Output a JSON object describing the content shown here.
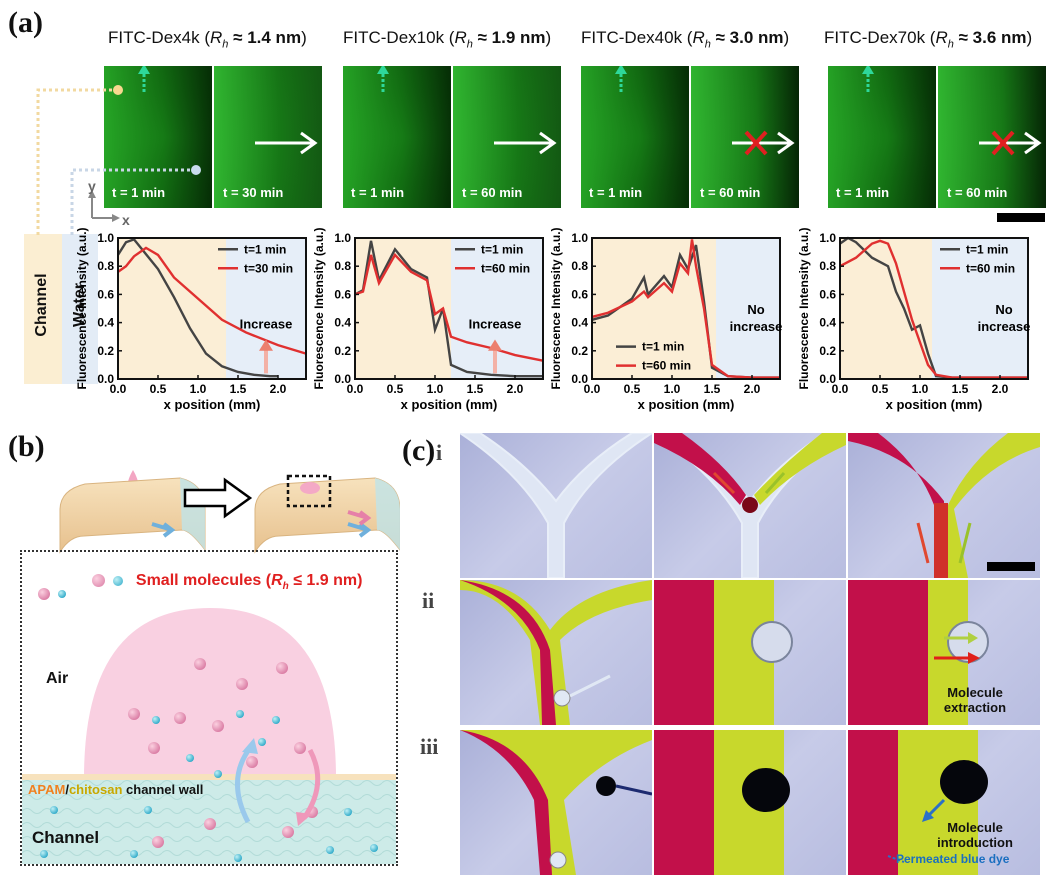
{
  "panels": {
    "a": "(a)",
    "b": "(b)",
    "c": "(c)"
  },
  "dextrans": [
    {
      "name": "FITC-Dex4k",
      "rh_prefix": "R",
      "rh_sub": "h",
      "rh_value": " ≈ 1.4 nm",
      "t1": "t = 1 min",
      "t2": "t = 30 min",
      "blocked": false,
      "chart": {
        "legend1": "t=1 min",
        "legend2": "t=30 min",
        "annotation": "Increase"
      }
    },
    {
      "name": "FITC-Dex10k",
      "rh_prefix": "R",
      "rh_sub": "h",
      "rh_value": " ≈ 1.9 nm",
      "t1": "t = 1 min",
      "t2": "t = 60 min",
      "blocked": false,
      "chart": {
        "legend1": "t=1 min",
        "legend2": "t=60 min",
        "annotation": "Increase"
      }
    },
    {
      "name": "FITC-Dex40k",
      "rh_prefix": "R",
      "rh_sub": "h",
      "rh_value": " ≈ 3.0 nm",
      "t1": "t = 1 min",
      "t2": "t = 60 min",
      "blocked": true,
      "chart": {
        "legend1": "t=1 min",
        "legend2": "t=60 min",
        "annotation": "No increase"
      }
    },
    {
      "name": "FITC-Dex70k",
      "rh_prefix": "R",
      "rh_sub": "h",
      "rh_value": " ≈ 3.6 nm",
      "t1": "t = 1 min",
      "t2": "t = 60 min",
      "blocked": true,
      "chart": {
        "legend1": "t=1 min",
        "legend2": "t=60 min",
        "annotation": "No increase"
      }
    }
  ],
  "axes": {
    "xlabel": "x position (mm)",
    "ylabel": "Fluorescence Intensity (a.u.)",
    "xticks": [
      "0.0",
      "0.5",
      "1.0",
      "1.5",
      "2.0"
    ],
    "yticks": [
      "0.0",
      "0.2",
      "0.4",
      "0.6",
      "0.8",
      "1.0"
    ]
  },
  "axis_indicator": {
    "y": "y",
    "x": "x"
  },
  "side_labels": {
    "channel": "Channel",
    "water": "Water"
  },
  "chart_data": [
    {
      "type": "line",
      "xlim": [
        0,
        2.35
      ],
      "ylim": [
        0,
        1.0
      ],
      "series": [
        {
          "name": "t=1 min",
          "color": "#444444",
          "x": [
            0,
            0.1,
            0.2,
            0.3,
            0.5,
            0.7,
            0.9,
            1.1,
            1.3,
            1.5,
            1.7,
            1.9,
            2.0
          ],
          "y": [
            0.88,
            0.97,
            0.99,
            0.92,
            0.78,
            0.58,
            0.36,
            0.18,
            0.09,
            0.05,
            0.03,
            0.02,
            0.02
          ]
        },
        {
          "name": "t=30 min",
          "color": "#e03030",
          "x": [
            0,
            0.1,
            0.2,
            0.35,
            0.5,
            0.7,
            1.0,
            1.3,
            1.6,
            2.0,
            2.35
          ],
          "y": [
            0.76,
            0.8,
            0.87,
            0.93,
            0.88,
            0.72,
            0.57,
            0.42,
            0.33,
            0.24,
            0.18
          ]
        }
      ]
    },
    {
      "type": "line",
      "xlim": [
        0,
        2.35
      ],
      "ylim": [
        0,
        1.0
      ],
      "series": [
        {
          "name": "t=1 min",
          "color": "#444444",
          "x": [
            0,
            0.1,
            0.2,
            0.3,
            0.5,
            0.7,
            0.9,
            1.0,
            1.1,
            1.2,
            1.4,
            1.7,
            2.0,
            2.35
          ],
          "y": [
            0.6,
            0.63,
            0.98,
            0.7,
            0.92,
            0.78,
            0.72,
            0.35,
            0.5,
            0.1,
            0.05,
            0.03,
            0.02,
            0.02
          ]
        },
        {
          "name": "t=60 min",
          "color": "#e03030",
          "x": [
            0,
            0.1,
            0.2,
            0.3,
            0.5,
            0.7,
            0.9,
            1.0,
            1.1,
            1.2,
            1.4,
            1.7,
            2.0,
            2.35
          ],
          "y": [
            0.6,
            0.62,
            0.88,
            0.68,
            0.88,
            0.76,
            0.7,
            0.46,
            0.5,
            0.3,
            0.26,
            0.22,
            0.17,
            0.13
          ]
        }
      ]
    },
    {
      "type": "line",
      "xlim": [
        0,
        2.35
      ],
      "ylim": [
        0,
        1.0
      ],
      "series": [
        {
          "name": "t=1 min",
          "color": "#444444",
          "x": [
            0,
            0.2,
            0.5,
            0.65,
            0.7,
            0.9,
            1.0,
            1.1,
            1.2,
            1.3,
            1.4,
            1.5,
            1.7,
            2.0,
            2.35
          ],
          "y": [
            0.42,
            0.45,
            0.57,
            0.72,
            0.6,
            0.73,
            0.65,
            0.88,
            0.78,
            0.95,
            0.55,
            0.08,
            0.02,
            0.01,
            0.01
          ]
        },
        {
          "name": "t=60 min",
          "color": "#e03030",
          "x": [
            0,
            0.2,
            0.5,
            0.65,
            0.7,
            0.9,
            1.0,
            1.1,
            1.2,
            1.25,
            1.3,
            1.4,
            1.5,
            1.7,
            2.0,
            2.35
          ],
          "y": [
            0.44,
            0.47,
            0.55,
            0.62,
            0.58,
            0.68,
            0.62,
            0.82,
            0.75,
            0.99,
            0.8,
            0.5,
            0.1,
            0.02,
            0.01,
            0.01
          ]
        }
      ]
    },
    {
      "type": "line",
      "xlim": [
        0,
        2.35
      ],
      "ylim": [
        0,
        1.0
      ],
      "series": [
        {
          "name": "t=1 min",
          "color": "#444444",
          "x": [
            0,
            0.1,
            0.2,
            0.4,
            0.6,
            0.7,
            0.8,
            0.9,
            1.0,
            1.1,
            1.2,
            1.4,
            2.35
          ],
          "y": [
            0.96,
            1.0,
            0.97,
            0.86,
            0.8,
            0.62,
            0.5,
            0.35,
            0.38,
            0.18,
            0.02,
            0.01,
            0.01
          ]
        },
        {
          "name": "t=60 min",
          "color": "#e03030",
          "x": [
            0,
            0.2,
            0.4,
            0.5,
            0.6,
            0.7,
            0.8,
            0.9,
            1.0,
            1.1,
            1.2,
            1.4,
            2.35
          ],
          "y": [
            0.8,
            0.86,
            0.96,
            0.98,
            0.96,
            0.82,
            0.62,
            0.42,
            0.26,
            0.1,
            0.03,
            0.01,
            0.01
          ]
        }
      ]
    }
  ],
  "panel_b": {
    "legend_text": "Small molecules (",
    "legend_rh_prefix": "R",
    "legend_rh_sub": "h",
    "legend_rh_value": " ≤ 1.9 nm)",
    "air": "Air",
    "wall_apam": "APAM",
    "wall_slash": "/",
    "wall_chitosan": "chitosan",
    "wall_rest": " channel wall",
    "channel": "Channel",
    "colors": {
      "legend": "#e02020",
      "apam": "#f08020",
      "chitosan": "#c8a800"
    }
  },
  "panel_c": {
    "rows": [
      "i",
      "ii",
      "iii"
    ],
    "extraction": "Molecule extraction",
    "introduction": "Molecule introduction",
    "permeated": "Permeated blue dye",
    "permeated_color": "#1a6fc0"
  }
}
